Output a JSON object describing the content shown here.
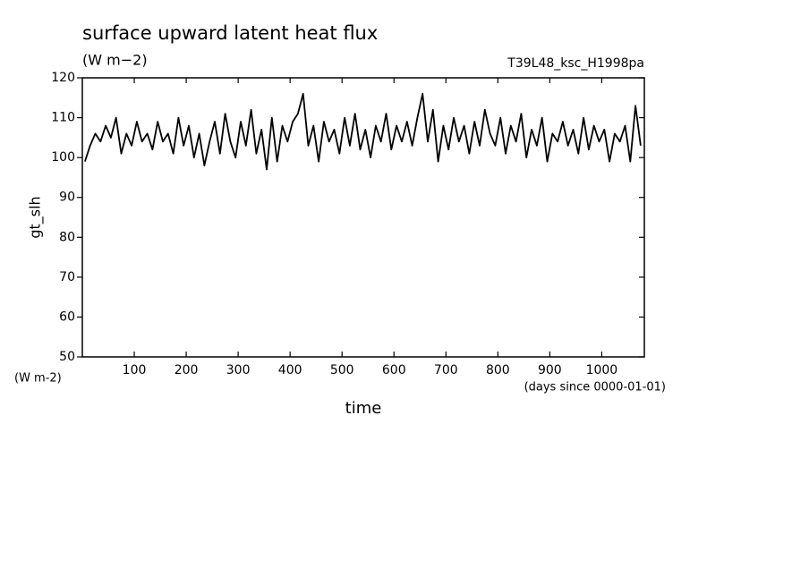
{
  "chart_data": {
    "type": "line",
    "title": "surface upward latent heat flux",
    "subtitle": "(W m−2)",
    "run_label": "T39L48_ksc_H1998pa",
    "y_label": "gt_slh",
    "y_unit_label": "(W m-2)",
    "x_label": "time",
    "x_unit_label": "(days since 0000-01-01)",
    "xlim": [
      0,
      1082
    ],
    "ylim": [
      50,
      120
    ],
    "xticks": [
      100,
      200,
      300,
      400,
      500,
      600,
      700,
      800,
      900,
      1000
    ],
    "yticks": [
      50,
      60,
      70,
      80,
      90,
      100,
      110,
      120
    ],
    "x": [
      5,
      15,
      25,
      35,
      45,
      55,
      65,
      75,
      85,
      95,
      105,
      115,
      125,
      135,
      145,
      155,
      165,
      175,
      185,
      195,
      205,
      215,
      225,
      235,
      245,
      255,
      265,
      275,
      285,
      295,
      305,
      315,
      325,
      335,
      345,
      355,
      365,
      375,
      385,
      395,
      405,
      415,
      425,
      435,
      445,
      455,
      465,
      475,
      485,
      495,
      505,
      515,
      525,
      535,
      545,
      555,
      565,
      575,
      585,
      595,
      605,
      615,
      625,
      635,
      645,
      655,
      665,
      675,
      685,
      695,
      705,
      715,
      725,
      735,
      745,
      755,
      765,
      775,
      785,
      795,
      805,
      815,
      825,
      835,
      845,
      855,
      865,
      875,
      885,
      895,
      905,
      915,
      925,
      935,
      945,
      955,
      965,
      975,
      985,
      995,
      1005,
      1015,
      1025,
      1035,
      1045,
      1055,
      1065,
      1075
    ],
    "series": [
      {
        "name": "gt_slh",
        "color": "#000000",
        "values": [
          99,
          103,
          106,
          104,
          108,
          105,
          110,
          101,
          106,
          103,
          109,
          104,
          106,
          102,
          109,
          104,
          106,
          101,
          110,
          103,
          108,
          100,
          106,
          98,
          104,
          109,
          101,
          111,
          104,
          100,
          109,
          103,
          112,
          101,
          107,
          97,
          110,
          99,
          108,
          104,
          109,
          111,
          116,
          103,
          108,
          99,
          109,
          104,
          107,
          101,
          110,
          103,
          111,
          102,
          107,
          100,
          108,
          104,
          111,
          102,
          108,
          104,
          109,
          103,
          110,
          116,
          104,
          112,
          99,
          108,
          102,
          110,
          104,
          108,
          101,
          109,
          103,
          112,
          106,
          103,
          110,
          101,
          108,
          104,
          111,
          100,
          107,
          103,
          110,
          99,
          106,
          104,
          109,
          103,
          107,
          101,
          110,
          102,
          108,
          104,
          107,
          99,
          106,
          104,
          108,
          99,
          113,
          103
        ]
      }
    ]
  }
}
